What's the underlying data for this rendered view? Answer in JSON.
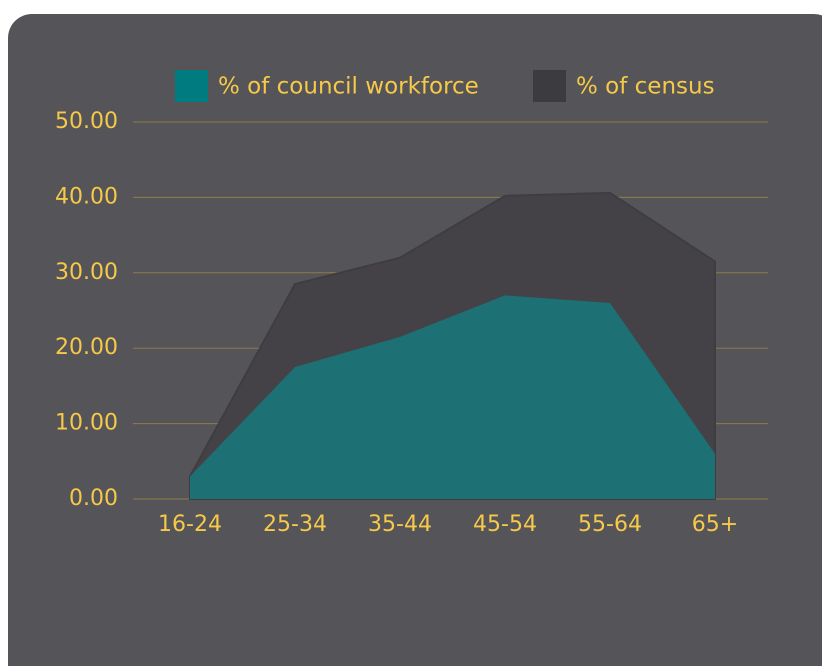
{
  "chart_data": {
    "type": "area",
    "categories": [
      "16-24",
      "25-34",
      "35-44",
      "45-54",
      "55-64",
      "65+"
    ],
    "series": [
      {
        "name": "% of council workforce",
        "color": "#1d7074",
        "legend_color": "#007b80",
        "values": [
          3,
          17.5,
          21.5,
          27,
          26,
          6
        ]
      },
      {
        "name": "% of census",
        "color": "#444247",
        "legend_color": "#3c3b3f",
        "values": [
          3,
          28.5,
          32,
          40.2,
          40.6,
          31.5
        ]
      }
    ],
    "ylim": [
      0,
      50
    ],
    "yticks": [
      {
        "value": 0,
        "label": "0.00"
      },
      {
        "value": 10,
        "label": "10.00"
      },
      {
        "value": 20,
        "label": "20.00"
      },
      {
        "value": 30,
        "label": "30.00"
      },
      {
        "value": 40,
        "label": "40.00"
      },
      {
        "value": 50,
        "label": "50.00"
      }
    ],
    "grid": true,
    "legend": "top"
  }
}
